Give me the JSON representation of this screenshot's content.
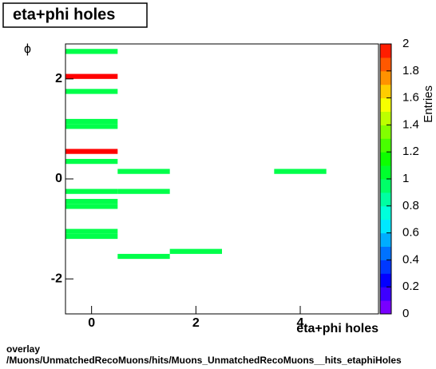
{
  "chart_data": {
    "type": "hist2d",
    "title": "eta+phi holes",
    "x_label": "eta+phi holes",
    "y_label": "ϕ",
    "z_label": "Entries",
    "footer": [
      "overlay",
      "/Muons/UnmatchedRecoMuons/hits/Muons_UnmatchedRecoMuons__hits_etaphiHoles"
    ],
    "xlim": [
      -0.5,
      5.5
    ],
    "ylim": [
      -2.7,
      2.7
    ],
    "zlim": [
      0,
      2
    ],
    "xticks": [
      0,
      2,
      4
    ],
    "yticks": [
      -2,
      0,
      2
    ],
    "zticks": [
      0,
      0.2,
      0.4,
      0.6,
      0.8,
      1,
      1.2,
      1.4,
      1.6,
      1.8,
      2
    ],
    "cells": [
      {
        "x": [
          -0.5,
          0.5
        ],
        "y": [
          2.5,
          2.6
        ],
        "value": 1
      },
      {
        "x": [
          -0.5,
          0.5
        ],
        "y": [
          2.0,
          2.1
        ],
        "value": 2
      },
      {
        "x": [
          -0.5,
          0.5
        ],
        "y": [
          1.7,
          1.8
        ],
        "value": 1
      },
      {
        "x": [
          -0.5,
          0.5
        ],
        "y": [
          1.1,
          1.2
        ],
        "value": 1
      },
      {
        "x": [
          -0.5,
          0.5
        ],
        "y": [
          1.0,
          1.1
        ],
        "value": 1
      },
      {
        "x": [
          -0.5,
          0.5
        ],
        "y": [
          0.5,
          0.6
        ],
        "value": 2
      },
      {
        "x": [
          -0.5,
          0.5
        ],
        "y": [
          0.3,
          0.4
        ],
        "value": 1
      },
      {
        "x": [
          0.5,
          1.5
        ],
        "y": [
          0.1,
          0.2
        ],
        "value": 1
      },
      {
        "x": [
          3.5,
          4.5
        ],
        "y": [
          0.1,
          0.2
        ],
        "value": 1
      },
      {
        "x": [
          -0.5,
          0.5
        ],
        "y": [
          -0.3,
          -0.2
        ],
        "value": 1
      },
      {
        "x": [
          0.5,
          1.5
        ],
        "y": [
          -0.3,
          -0.2
        ],
        "value": 1
      },
      {
        "x": [
          -0.5,
          0.5
        ],
        "y": [
          -0.5,
          -0.4
        ],
        "value": 1
      },
      {
        "x": [
          -0.5,
          0.5
        ],
        "y": [
          -0.6,
          -0.5
        ],
        "value": 1
      },
      {
        "x": [
          -0.5,
          0.5
        ],
        "y": [
          -1.1,
          -1.0
        ],
        "value": 1
      },
      {
        "x": [
          -0.5,
          0.5
        ],
        "y": [
          -1.2,
          -1.1
        ],
        "value": 1
      },
      {
        "x": [
          1.5,
          2.5
        ],
        "y": [
          -1.5,
          -1.4
        ],
        "value": 1
      },
      {
        "x": [
          0.5,
          1.5
        ],
        "y": [
          -1.6,
          -1.5
        ],
        "value": 1
      }
    ]
  }
}
